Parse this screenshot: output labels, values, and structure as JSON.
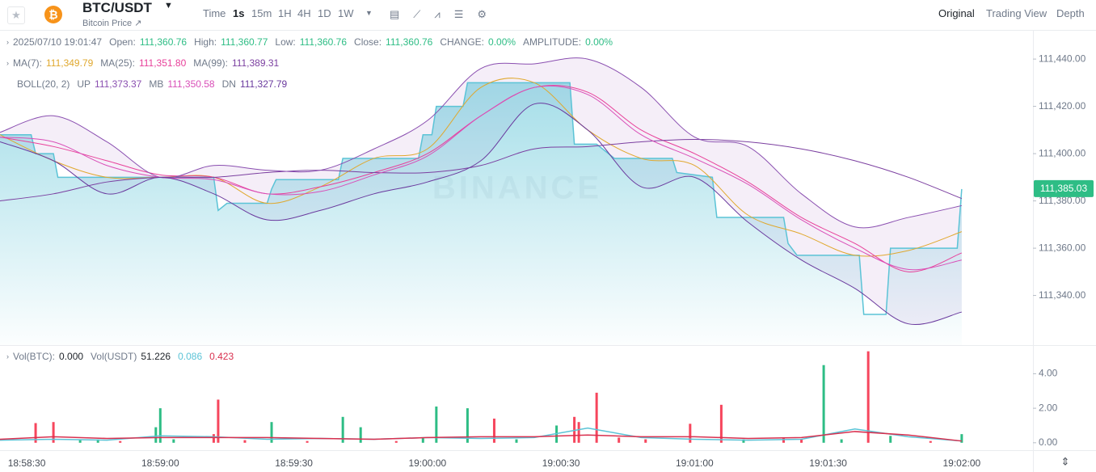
{
  "header": {
    "symbol": "BTC/USDT",
    "subtitle": "Bitcoin Price ↗",
    "intervals": [
      "Time",
      "1s",
      "15m",
      "1H",
      "4H",
      "1D",
      "1W"
    ],
    "active_interval": 1,
    "views": [
      "Original",
      "Trading View",
      "Depth"
    ],
    "active_view": 0
  },
  "info": {
    "datetime": "2025/07/10 19:01:47",
    "items": [
      {
        "label": "Open:",
        "value": "111,360.76"
      },
      {
        "label": "High:",
        "value": "111,360.77"
      },
      {
        "label": "Low:",
        "value": "111,360.76"
      },
      {
        "label": "Close:",
        "value": "111,360.76"
      },
      {
        "label": "CHANGE:",
        "value": "0.00%"
      },
      {
        "label": "AMPLITUDE:",
        "value": "0.00%"
      }
    ]
  },
  "watermark": "BINANCE",
  "chart_data": [
    {
      "type": "line",
      "xlim": [
        "18:58:24",
        "19:02:16"
      ],
      "xticks": [
        "18:58:30",
        "18:59:00",
        "18:59:30",
        "19:00:00",
        "19:00:30",
        "19:01:00",
        "19:01:30",
        "19:02:00"
      ],
      "ylim": [
        111319,
        111452
      ],
      "yticks": [
        {
          "value": 111340,
          "label": "111,340.00"
        },
        {
          "value": 111360,
          "label": "111,360.00"
        },
        {
          "value": 111380,
          "label": "111,380.00"
        },
        {
          "value": 111400,
          "label": "111,400.00"
        },
        {
          "value": 111420,
          "label": "111,420.00"
        },
        {
          "value": 111440,
          "label": "111,440.00"
        }
      ],
      "price_tag": {
        "value": 111385.03,
        "label": "111,385.03"
      },
      "boll_label": "BOLL(20, 2)",
      "series": [
        {
          "color": "#5bc3d6",
          "area": true,
          "x": [
            "18:58:24",
            "18:58:31",
            "18:58:32",
            "18:58:36",
            "18:58:37",
            "18:59:12",
            "18:59:13",
            "18:59:15",
            "18:59:24",
            "18:59:25",
            "18:59:26",
            "18:59:40",
            "18:59:41",
            "18:59:58",
            "18:59:59",
            "19:00:01",
            "19:00:02",
            "19:00:08",
            "19:00:09",
            "19:00:32",
            "19:00:33",
            "19:00:38",
            "19:00:42",
            "19:00:55",
            "19:00:56",
            "19:01:04",
            "19:01:05",
            "19:01:20",
            "19:01:21",
            "19:01:23",
            "19:01:37",
            "19:01:38",
            "19:01:43",
            "19:01:44",
            "19:01:59",
            "19:02:00"
          ],
          "values": [
            111408,
            111408,
            111400,
            111400,
            111390,
            111390,
            111376,
            111379,
            111379,
            111385,
            111389,
            111389,
            111398,
            111398,
            111408,
            111408,
            111420,
            111420,
            111430,
            111430,
            111404,
            111404,
            111398,
            111398,
            111392,
            111390,
            111373,
            111373,
            111362,
            111357,
            111357,
            111332,
            111332,
            111360,
            111360,
            111385
          ]
        },
        {
          "name": "MA(7):",
          "legend_value": "111,349.79",
          "color": "#e0a82e",
          "group": "ma",
          "x": [
            "18:58:24",
            "18:58:36",
            "18:58:48",
            "18:59:00",
            "18:59:12",
            "18:59:24",
            "18:59:36",
            "18:59:48",
            "19:00:00",
            "19:00:12",
            "19:00:24",
            "19:00:36",
            "19:00:48",
            "19:01:00",
            "19:01:12",
            "19:01:24",
            "19:01:36",
            "19:01:48",
            "19:02:00"
          ],
          "values": [
            111408,
            111397,
            111390,
            111390,
            111390,
            111379,
            111386,
            111398,
            111402,
            111428,
            111430,
            111410,
            111398,
            111395,
            111374,
            111366,
            111357,
            111359,
            111367
          ]
        },
        {
          "name": "MA(25):",
          "legend_value": "111,351.80",
          "color": "#e8409a",
          "group": "ma",
          "x": [
            "18:58:24",
            "18:58:36",
            "18:58:48",
            "18:59:00",
            "18:59:12",
            "18:59:24",
            "18:59:36",
            "18:59:48",
            "19:00:00",
            "19:00:12",
            "19:00:24",
            "19:00:36",
            "19:00:48",
            "19:01:00",
            "19:01:12",
            "19:01:24",
            "19:01:36",
            "19:01:48",
            "19:02:00"
          ],
          "values": [
            111407,
            111403,
            111397,
            111391,
            111390,
            111383,
            111386,
            111392,
            111400,
            111416,
            111428,
            111426,
            111410,
            111400,
            111388,
            111373,
            111362,
            111350,
            111358
          ]
        },
        {
          "name": "MA(99):",
          "legend_value": "111,389.31",
          "color": "#7b3fa0",
          "group": "ma",
          "x": [
            "18:58:24",
            "18:58:36",
            "18:58:48",
            "18:59:00",
            "18:59:12",
            "18:59:24",
            "18:59:36",
            "18:59:48",
            "19:00:00",
            "19:00:12",
            "19:00:24",
            "19:00:36",
            "19:00:48",
            "19:01:00",
            "19:01:12",
            "19:01:24",
            "19:01:36",
            "19:01:48",
            "19:02:00"
          ],
          "values": [
            111380,
            111383,
            111388,
            111390,
            111390,
            111392,
            111393,
            111392,
            111392,
            111395,
            111402,
            111403,
            111405,
            111406,
            111405,
            111402,
            111397,
            111390,
            111381
          ]
        },
        {
          "name": "UP",
          "legend_value": "111,373.37",
          "color": "#8a4fb0",
          "group": "boll",
          "x": [
            "18:58:24",
            "18:58:36",
            "18:58:48",
            "18:59:00",
            "18:59:12",
            "18:59:24",
            "18:59:36",
            "18:59:48",
            "19:00:00",
            "19:00:12",
            "19:00:24",
            "19:00:36",
            "19:00:48",
            "19:01:00",
            "19:01:12",
            "19:01:24",
            "19:01:36",
            "19:01:48",
            "19:02:00"
          ],
          "values": [
            111409,
            111416,
            111405,
            111390,
            111395,
            111393,
            111393,
            111402,
            111414,
            111436,
            111438,
            111440,
            111428,
            111407,
            111403,
            111383,
            111369,
            111373,
            111378
          ]
        },
        {
          "name": "MB",
          "legend_value": "111,350.58",
          "color": "#d94fb8",
          "group": "boll",
          "x": [
            "18:58:24",
            "18:58:36",
            "18:58:48",
            "18:59:00",
            "18:59:12",
            "18:59:24",
            "18:59:36",
            "18:59:48",
            "19:00:00",
            "19:00:12",
            "19:00:24",
            "19:00:36",
            "19:00:48",
            "19:01:00",
            "19:01:12",
            "19:01:24",
            "19:01:36",
            "19:01:48",
            "19:02:00"
          ],
          "values": [
            111407,
            111405,
            111395,
            111390,
            111389,
            111383,
            111384,
            111391,
            111399,
            111416,
            111428,
            111425,
            111408,
            111398,
            111387,
            111372,
            111360,
            111351,
            111355
          ]
        },
        {
          "name": "DN",
          "legend_value": "111,327.79",
          "color": "#6a3a9e",
          "group": "boll",
          "x": [
            "18:58:24",
            "18:58:36",
            "18:58:48",
            "18:59:00",
            "18:59:12",
            "18:59:24",
            "18:59:36",
            "18:59:48",
            "19:00:00",
            "19:00:12",
            "19:00:24",
            "19:00:36",
            "19:00:48",
            "19:01:00",
            "19:01:12",
            "19:01:24",
            "19:01:36",
            "19:01:48",
            "19:02:00"
          ],
          "values": [
            111405,
            111397,
            111383,
            111390,
            111383,
            111372,
            111376,
            111383,
            111388,
            111397,
            111421,
            111410,
            111386,
            111390,
            111371,
            111355,
            111343,
            111328,
            111333
          ]
        }
      ]
    },
    {
      "type": "bar",
      "xlim": [
        "18:58:24",
        "19:02:16"
      ],
      "ylim": [
        -0.43,
        5.19
      ],
      "yticks": [
        {
          "value": 0,
          "label": "0.00"
        },
        {
          "value": 2,
          "label": "2.00"
        },
        {
          "value": 4,
          "label": "4.00"
        }
      ],
      "legend": [
        {
          "label": "Vol(BTC):",
          "value": "0.000"
        },
        {
          "label": "Vol(USDT)",
          "value": "51.226"
        }
      ],
      "x": [
        "18:58:32",
        "18:58:36",
        "18:58:42",
        "18:58:46",
        "18:58:51",
        "18:58:59",
        "18:59:00",
        "18:59:03",
        "18:59:12",
        "18:59:13",
        "18:59:19",
        "18:59:25",
        "18:59:33",
        "18:59:41",
        "18:59:45",
        "18:59:53",
        "18:59:59",
        "19:00:02",
        "19:00:09",
        "19:00:15",
        "19:00:20",
        "19:00:29",
        "19:00:33",
        "19:00:34",
        "19:00:38",
        "19:00:43",
        "19:00:49",
        "19:00:59",
        "19:01:06",
        "19:01:11",
        "19:01:20",
        "19:01:24",
        "19:01:29",
        "19:01:33",
        "19:01:39",
        "19:01:44",
        "19:01:53",
        "19:02:00"
      ],
      "values": [
        1.14,
        1.2,
        0.15,
        0.2,
        0.1,
        0.9,
        2.0,
        0.2,
        0.5,
        2.5,
        0.15,
        1.2,
        0.1,
        1.5,
        0.9,
        0.1,
        0.3,
        2.1,
        2.0,
        1.4,
        0.2,
        1.0,
        1.5,
        1.2,
        2.9,
        0.3,
        0.2,
        1.1,
        2.2,
        0.2,
        0.3,
        0.2,
        4.5,
        0.2,
        5.3,
        0.4,
        0.1,
        0.5
      ],
      "colors": [
        "#f6465d",
        "#f6465d",
        "#2ebd85",
        "#2ebd85",
        "#f6465d",
        "#2ebd85",
        "#2ebd85",
        "#2ebd85",
        "#f6465d",
        "#f6465d",
        "#f6465d",
        "#2ebd85",
        "#f6465d",
        "#2ebd85",
        "#2ebd85",
        "#f6465d",
        "#2ebd85",
        "#2ebd85",
        "#2ebd85",
        "#f6465d",
        "#2ebd85",
        "#2ebd85",
        "#f6465d",
        "#f6465d",
        "#f6465d",
        "#f6465d",
        "#f6465d",
        "#f6465d",
        "#f6465d",
        "#2ebd85",
        "#f6465d",
        "#f6465d",
        "#2ebd85",
        "#2ebd85",
        "#f6465d",
        "#2ebd85",
        "#f6465d",
        "#2ebd85"
      ],
      "series": [
        {
          "legend_value": "0.086",
          "color": "#5bc3d6",
          "x": [
            "18:58:24",
            "18:58:36",
            "18:58:48",
            "18:59:00",
            "18:59:12",
            "18:59:24",
            "18:59:36",
            "18:59:48",
            "19:00:00",
            "19:00:12",
            "19:00:24",
            "19:00:36",
            "19:00:48",
            "19:01:00",
            "19:01:12",
            "19:01:24",
            "19:01:36",
            "19:01:48",
            "19:02:00"
          ],
          "values": [
            0.15,
            0.2,
            0.15,
            0.4,
            0.35,
            0.2,
            0.25,
            0.2,
            0.3,
            0.25,
            0.3,
            0.85,
            0.3,
            0.2,
            0.15,
            0.2,
            0.8,
            0.35,
            0.1
          ]
        },
        {
          "legend_value": "0.423",
          "color": "#d9304f",
          "x": [
            "18:58:24",
            "18:58:36",
            "18:58:48",
            "18:59:00",
            "18:59:12",
            "18:59:24",
            "18:59:36",
            "18:59:48",
            "19:00:00",
            "19:00:12",
            "19:00:24",
            "19:00:36",
            "19:00:48",
            "19:01:00",
            "19:01:12",
            "19:01:24",
            "19:01:36",
            "19:01:48",
            "19:02:00"
          ],
          "values": [
            0.2,
            0.35,
            0.25,
            0.3,
            0.3,
            0.3,
            0.25,
            0.2,
            0.3,
            0.35,
            0.35,
            0.45,
            0.35,
            0.35,
            0.25,
            0.3,
            0.65,
            0.45,
            0.1
          ]
        }
      ]
    }
  ]
}
